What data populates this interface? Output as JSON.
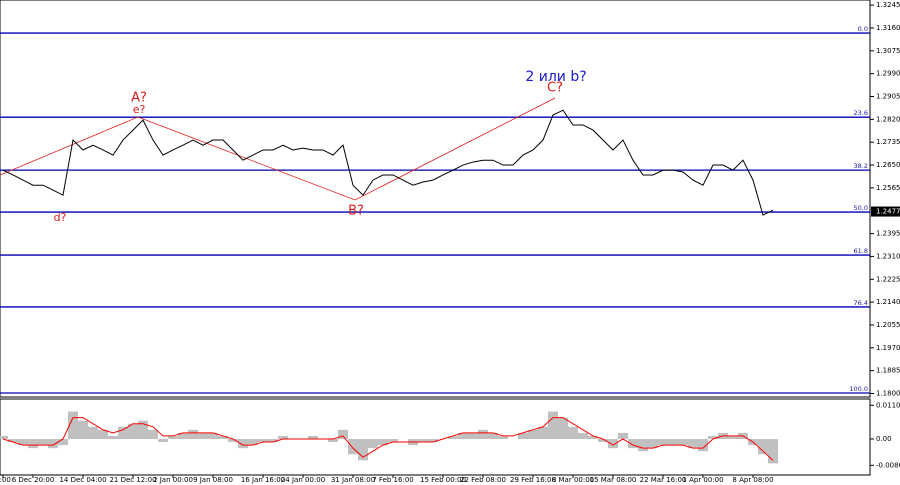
{
  "chart_data": [
    {
      "type": "line",
      "color": "#000000",
      "categories": [
        "2:00",
        null,
        null,
        "6 Dec 20:00",
        null,
        null,
        null,
        null,
        "14 Dec 04:00",
        null,
        null,
        null,
        null,
        "21 Dec 12:00",
        null,
        null,
        null,
        "2 Jan 00:00",
        null,
        null,
        null,
        "9 Jan 08:00",
        null,
        null,
        null,
        null,
        "16 Jan 16:00",
        null,
        null,
        null,
        "24 Jan 00:00",
        null,
        null,
        null,
        null,
        "31 Jan 08:00",
        null,
        null,
        null,
        "7 Feb 16:00",
        null,
        null,
        null,
        null,
        "15 Feb 00:00",
        null,
        null,
        null,
        "22 Feb 08:00",
        null,
        null,
        null,
        null,
        "29 Feb 16:00",
        null,
        null,
        null,
        "8 Mar 00:00",
        null,
        null,
        null,
        "15 Mar 08:00",
        null,
        null,
        null,
        null,
        "22 Mar 16:00",
        null,
        null,
        null,
        "1 Apr 00:00",
        null,
        null,
        null,
        null,
        "8 Apr 08:00",
        null,
        null
      ],
      "values": [
        1.2631,
        1.2613,
        1.2594,
        1.2575,
        1.2575,
        1.2557,
        1.2538,
        1.2743,
        1.2706,
        1.2724,
        1.2706,
        1.2687,
        1.2743,
        1.278,
        1.2817,
        1.2743,
        1.2687,
        1.2706,
        1.2724,
        1.2743,
        1.2724,
        1.2743,
        1.2743,
        1.2706,
        1.2668,
        1.2687,
        1.2706,
        1.2706,
        1.2724,
        1.2706,
        1.2713,
        1.2706,
        1.2706,
        1.2687,
        1.2724,
        1.2575,
        1.2538,
        1.2594,
        1.2613,
        1.2613,
        1.2594,
        1.2575,
        1.2587,
        1.2594,
        1.2613,
        1.2631,
        1.265,
        1.2661,
        1.2668,
        1.2668,
        1.265,
        1.265,
        1.2687,
        1.2706,
        1.2743,
        1.2836,
        1.2854,
        1.2799,
        1.2799,
        1.278,
        1.2743,
        1.2706,
        1.2743,
        1.2668,
        1.2613,
        1.2613,
        1.2631,
        1.2631,
        1.2624,
        1.2594,
        1.2575,
        1.265,
        1.265,
        1.2631,
        1.2668,
        1.2594,
        1.2464,
        1.2482
      ],
      "ylim": [
        1.1787,
        1.3264
      ],
      "yticks": [
        1.3245,
        {
          "value": 1.316,
          "label": "1.3160"
        },
        1.3075,
        {
          "value": 1.299,
          "label": "1.2990"
        },
        1.2905,
        {
          "value": 1.282,
          "label": "1.2820"
        },
        1.2735,
        {
          "value": 1.265,
          "label": "1.2650"
        },
        1.2565,
        1.2395,
        {
          "value": 1.231,
          "label": "1.2310"
        },
        1.2225,
        {
          "value": 1.214,
          "label": "1.2140"
        },
        1.2055,
        {
          "value": 1.197,
          "label": "1.1970"
        },
        1.1885,
        {
          "value": 1.18,
          "label": "1.1800"
        }
      ],
      "current_price": 1.2477,
      "levels": [
        {
          "label": "0.0",
          "value": 1.3141
        },
        {
          "label": "23.6",
          "value": 1.2828
        },
        {
          "label": "38.2",
          "value": 1.2631
        },
        {
          "label": "50.0",
          "value": 1.2475
        },
        {
          "label": "61.8",
          "value": 1.2315
        },
        {
          "label": "76.4",
          "value": 1.2122
        },
        {
          "label": "100.0",
          "value": 1.1802
        }
      ],
      "level_color": "#0000b4",
      "annotations": [
        "A?",
        "e?",
        "d?",
        "B?",
        "C?",
        "2 или b?"
      ]
    },
    {
      "type": "bar",
      "color": "#c0c0c0",
      "values": [
        0.001,
        -0.001,
        -0.002,
        -0.003,
        -0.002,
        -0.003,
        -0.002,
        0.009,
        0.006,
        0.004,
        0.003,
        0.001,
        0.004,
        0.005,
        0.006,
        0.003,
        -0.001,
        0.001,
        0.002,
        0.003,
        0.002,
        0.002,
        0.001,
        -0.001,
        -0.003,
        -0.002,
        -0.001,
        -0.001,
        0.001,
        0,
        0,
        0.001,
        0,
        -0.001,
        0.003,
        -0.005,
        -0.007,
        -0.003,
        -0.002,
        -0.001,
        0,
        -0.002,
        -0.001,
        -0.001,
        0,
        0.001,
        0.002,
        0.002,
        0.003,
        0.002,
        0.001,
        0,
        0.002,
        0.003,
        0.004,
        0.009,
        0.007,
        0.004,
        0.002,
        0.001,
        -0.001,
        -0.003,
        0.002,
        -0.003,
        -0.004,
        -0.003,
        -0.002,
        -0.002,
        -0.002,
        -0.003,
        -0.004,
        0.001,
        0.002,
        0.001,
        0.002,
        -0.002,
        -0.005,
        -0.008
      ],
      "signal": {
        "color": "#ff0000",
        "values": [
          0,
          -0.001,
          -0.002,
          -0.002,
          -0.002,
          -0.002,
          0,
          0.007,
          0.007,
          0.005,
          0.003,
          0.002,
          0.003,
          0.005,
          0.005,
          0.004,
          0.001,
          0.001,
          0.002,
          0.002,
          0.002,
          0.002,
          0.001,
          0,
          -0.002,
          -0.002,
          -0.001,
          -0.001,
          0,
          0,
          0,
          0,
          0,
          0,
          0.001,
          -0.003,
          -0.006,
          -0.004,
          -0.002,
          -0.001,
          -0.001,
          -0.001,
          -0.001,
          -0.001,
          0,
          0.001,
          0.002,
          0.002,
          0.002,
          0.002,
          0.001,
          0.001,
          0.002,
          0.003,
          0.004,
          0.007,
          0.007,
          0.005,
          0.003,
          0.001,
          0,
          -0.002,
          0,
          -0.002,
          -0.003,
          -0.003,
          -0.002,
          -0.002,
          -0.002,
          -0.003,
          -0.003,
          0,
          0.001,
          0.001,
          0.001,
          -0.001,
          -0.004,
          -0.007
        ]
      },
      "ylim": [
        -0.0118,
        0.0131
      ],
      "yticks": [
        0.01105,
        {
          "value": 0,
          "label": "0.00"
        },
        -0.00862
      ]
    }
  ]
}
